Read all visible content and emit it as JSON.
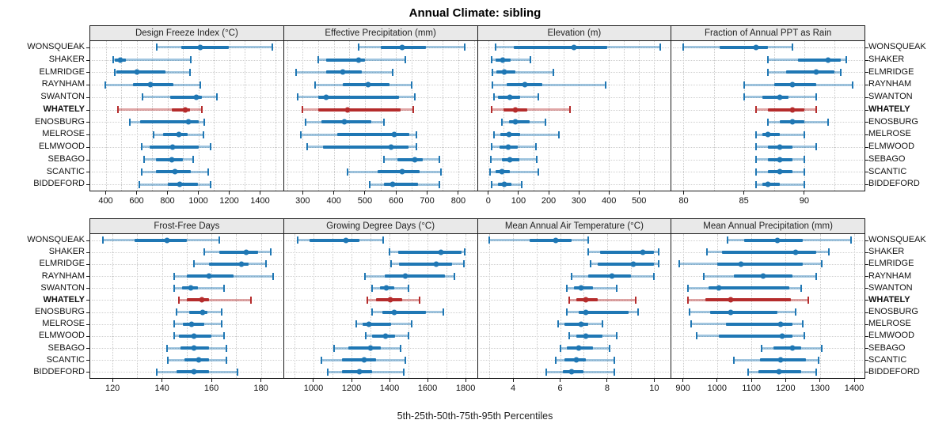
{
  "title": "Annual Climate: sibling",
  "caption": "5th-25th-50th-75th-95th Percentiles",
  "colors": {
    "series": "#1f77b4",
    "series_light": "rgba(31,119,180,0.42)",
    "highlight": "#b52c2c",
    "highlight_light": "rgba(181,44,44,0.42)",
    "panel_header_bg": "#e9e9e9",
    "border": "#1a1a1a",
    "grid": "#c9c9c9"
  },
  "chart_data": {
    "type": "dotplot-percentile-intervals",
    "title": "Annual Climate: sibling",
    "xlabel": "5th-25th-50th-75th-95th Percentiles",
    "percentiles": [
      5,
      25,
      50,
      75,
      95
    ],
    "legend": "none",
    "grid": "dotted",
    "layout": {
      "rows": 2,
      "cols": 4
    },
    "sites": [
      "WONSQUEAK",
      "SHAKER",
      "ELMRIDGE",
      "RAYNHAM",
      "SWANTON",
      "WHATELY",
      "ENOSBURG",
      "MELROSE",
      "ELMWOOD",
      "SEBAGO",
      "SCANTIC",
      "BIDDEFORD"
    ],
    "highlight_site": "WHATELY",
    "panels": [
      {
        "title": "Design Freeze Index (°C)",
        "row": 1,
        "xlim": [
          300,
          1550
        ],
        "ticks": [
          400,
          600,
          800,
          1000,
          1200,
          1400
        ],
        "grid_step": 100,
        "values": [
          [
            730,
            890,
            1015,
            1200,
            1480
          ],
          [
            450,
            460,
            495,
            530,
            950
          ],
          [
            460,
            470,
            600,
            785,
            945
          ],
          [
            395,
            575,
            690,
            840,
            1015
          ],
          [
            640,
            820,
            985,
            1025,
            1120
          ],
          [
            480,
            830,
            915,
            945,
            1025
          ],
          [
            555,
            625,
            935,
            1000,
            1040
          ],
          [
            710,
            770,
            875,
            930,
            1035
          ],
          [
            635,
            685,
            835,
            1005,
            1080
          ],
          [
            650,
            725,
            830,
            900,
            965
          ],
          [
            635,
            725,
            850,
            950,
            1065
          ],
          [
            620,
            805,
            880,
            1000,
            1080
          ]
        ]
      },
      {
        "title": "Effective Precipitation (mm)",
        "row": 1,
        "xlim": [
          240,
          860
        ],
        "ticks": [
          300,
          400,
          500,
          600,
          700,
          800
        ],
        "grid_step": 50,
        "values": [
          [
            480,
            550,
            620,
            695,
            820
          ],
          [
            350,
            375,
            480,
            500,
            630
          ],
          [
            280,
            375,
            430,
            490,
            590
          ],
          [
            340,
            430,
            510,
            580,
            650
          ],
          [
            285,
            350,
            375,
            610,
            660
          ],
          [
            300,
            350,
            445,
            615,
            655
          ],
          [
            310,
            360,
            435,
            520,
            560
          ],
          [
            295,
            410,
            595,
            643,
            665
          ],
          [
            315,
            365,
            585,
            640,
            665
          ],
          [
            560,
            605,
            660,
            685,
            740
          ],
          [
            445,
            540,
            620,
            675,
            745
          ],
          [
            515,
            560,
            590,
            670,
            740
          ]
        ]
      },
      {
        "title": "Elevation (m)",
        "row": 1,
        "xlim": [
          -35,
          605
        ],
        "ticks": [
          0,
          100,
          200,
          300,
          400,
          500
        ],
        "grid_step": 50,
        "values": [
          [
            25,
            85,
            285,
            395,
            570
          ],
          [
            10,
            25,
            48,
            75,
            140
          ],
          [
            13,
            28,
            52,
            90,
            215
          ],
          [
            13,
            60,
            120,
            180,
            390
          ],
          [
            18,
            32,
            72,
            105,
            165
          ],
          [
            10,
            50,
            90,
            130,
            270
          ],
          [
            45,
            70,
            90,
            138,
            190
          ],
          [
            18,
            40,
            70,
            105,
            235
          ],
          [
            11,
            37,
            65,
            98,
            158
          ],
          [
            9,
            45,
            72,
            103,
            160
          ],
          [
            6,
            24,
            46,
            72,
            165
          ],
          [
            12,
            32,
            53,
            76,
            111
          ]
        ]
      },
      {
        "title": "Fraction of Annual PPT as Rain",
        "row": 1,
        "xlim": [
          79,
          95
        ],
        "ticks": [
          80,
          85,
          90
        ],
        "grid_step": 2.5,
        "values": [
          [
            80,
            83,
            86,
            87,
            89
          ],
          [
            87,
            89.5,
            92,
            93,
            93.5
          ],
          [
            87,
            88.5,
            91,
            92.5,
            93
          ],
          [
            85,
            87.5,
            89,
            91,
            94
          ],
          [
            85,
            86.5,
            88,
            88.7,
            91
          ],
          [
            86,
            87,
            89,
            90,
            91
          ],
          [
            87,
            88,
            89,
            90,
            92
          ],
          [
            86,
            86.5,
            87,
            88,
            90
          ],
          [
            86,
            87,
            88,
            89,
            91
          ],
          [
            86,
            87,
            88,
            89,
            90
          ],
          [
            86,
            87,
            88,
            89,
            90
          ],
          [
            86,
            86.5,
            87,
            88,
            90
          ]
        ]
      },
      {
        "title": "Frost-Free Days",
        "row": 2,
        "xlim": [
          111,
          189
        ],
        "ticks": [
          120,
          140,
          160,
          180
        ],
        "grid_step": 10,
        "values": [
          [
            116,
            129,
            142,
            150,
            163
          ],
          [
            157,
            163,
            174,
            179,
            184
          ],
          [
            153,
            159,
            172,
            175,
            182
          ],
          [
            145,
            150,
            159,
            169,
            185
          ],
          [
            145,
            148,
            151.5,
            154.5,
            165
          ],
          [
            147,
            150,
            156,
            159,
            176
          ],
          [
            146,
            151,
            156.5,
            158.5,
            164
          ],
          [
            145,
            148.5,
            152,
            157,
            164
          ],
          [
            145,
            147,
            153,
            160,
            165
          ],
          [
            142,
            147.5,
            153,
            159,
            166
          ],
          [
            142.5,
            149,
            155,
            159,
            166
          ],
          [
            138,
            146,
            153,
            159,
            170.5
          ]
        ]
      },
      {
        "title": "Growing Degree Days (°C)",
        "row": 2,
        "xlim": [
          845,
          1860
        ],
        "ticks": [
          1000,
          1200,
          1400,
          1600,
          1800
        ],
        "grid_step": 100,
        "values": [
          [
            915,
            980,
            1170,
            1240,
            1365
          ],
          [
            1400,
            1445,
            1670,
            1780,
            1795
          ],
          [
            1410,
            1450,
            1645,
            1730,
            1790
          ],
          [
            1270,
            1375,
            1485,
            1690,
            1740
          ],
          [
            1310,
            1350,
            1385,
            1425,
            1500
          ],
          [
            1285,
            1330,
            1405,
            1465,
            1560
          ],
          [
            1310,
            1363,
            1425,
            1590,
            1685
          ],
          [
            1225,
            1260,
            1290,
            1410,
            1515
          ],
          [
            1273,
            1310,
            1380,
            1430,
            1500
          ],
          [
            1110,
            1185,
            1300,
            1355,
            1460
          ],
          [
            1040,
            1150,
            1265,
            1330,
            1485
          ],
          [
            1075,
            1150,
            1240,
            1310,
            1475
          ]
        ]
      },
      {
        "title": "Mean Annual Air Temperature (°C)",
        "row": 2,
        "xlim": [
          2.5,
          10.7
        ],
        "ticks": [
          4,
          6,
          8,
          10
        ],
        "grid_step": 1,
        "values": [
          [
            3.0,
            4.7,
            5.8,
            6.5,
            7.2
          ],
          [
            7.2,
            7.7,
            9.5,
            10.0,
            10.2
          ],
          [
            7.3,
            7.6,
            9.1,
            10.0,
            10.2
          ],
          [
            6.5,
            7.2,
            8.2,
            9.0,
            10.0
          ],
          [
            6.3,
            6.6,
            6.9,
            7.4,
            8.4
          ],
          [
            6.4,
            6.7,
            7.1,
            7.6,
            9.2
          ],
          [
            6.3,
            6.8,
            7.1,
            8.9,
            9.3
          ],
          [
            5.9,
            6.2,
            6.9,
            7.2,
            7.8
          ],
          [
            6.4,
            6.7,
            7.1,
            7.8,
            8.4
          ],
          [
            6.0,
            6.3,
            6.8,
            7.4,
            8.1
          ],
          [
            5.8,
            6.2,
            6.7,
            7.1,
            8.3
          ],
          [
            5.4,
            6.1,
            6.5,
            7.0,
            8.3
          ]
        ]
      },
      {
        "title": "Mean Annual Precipitation (mm)",
        "row": 2,
        "xlim": [
          867,
          1430
        ],
        "ticks": [
          900,
          1000,
          1100,
          1200,
          1300,
          1400
        ],
        "grid_step": 100,
        "values": [
          [
            1030,
            1080,
            1175,
            1250,
            1390
          ],
          [
            970,
            1015,
            1230,
            1290,
            1325
          ],
          [
            890,
            1000,
            1070,
            1250,
            1305
          ],
          [
            960,
            1050,
            1135,
            1220,
            1290
          ],
          [
            915,
            975,
            1005,
            1210,
            1245
          ],
          [
            915,
            965,
            1040,
            1215,
            1265
          ],
          [
            920,
            980,
            1040,
            1175,
            1230
          ],
          [
            925,
            1025,
            1185,
            1220,
            1250
          ],
          [
            940,
            1005,
            1190,
            1220,
            1255
          ],
          [
            1130,
            1165,
            1220,
            1245,
            1305
          ],
          [
            1050,
            1125,
            1185,
            1260,
            1295
          ],
          [
            1090,
            1120,
            1180,
            1245,
            1290
          ]
        ]
      }
    ]
  }
}
